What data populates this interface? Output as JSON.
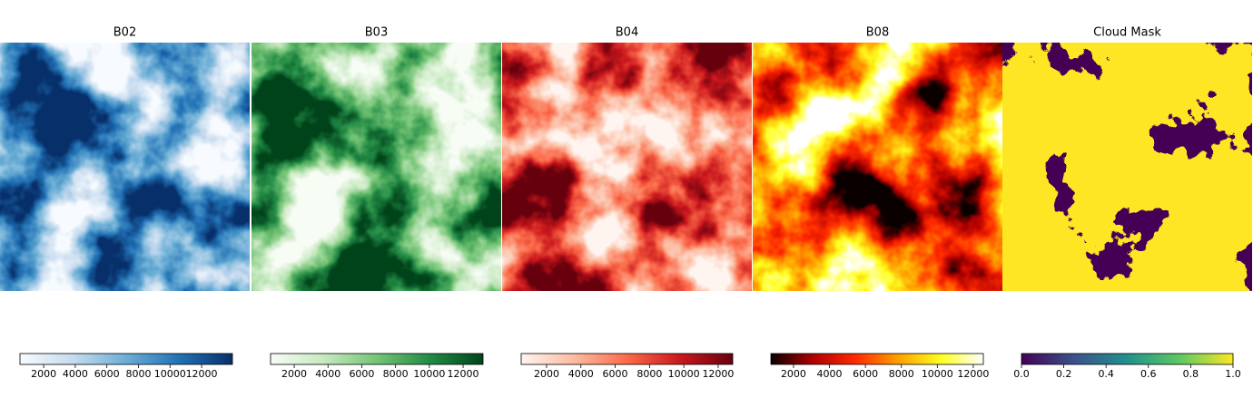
{
  "chart_data": [
    {
      "type": "image",
      "title": "B02",
      "colormap": [
        "#f7fbff",
        "#c6dbef",
        "#6baed6",
        "#2171b5",
        "#08306b"
      ],
      "xlim": [
        500,
        13950
      ],
      "xticks": [
        2000,
        4000,
        6000,
        8000,
        10000,
        12000
      ]
    },
    {
      "type": "image",
      "title": "B03",
      "colormap": [
        "#f7fcf5",
        "#c7e9c0",
        "#74c476",
        "#238b45",
        "#00441b"
      ],
      "xlim": [
        600,
        13180
      ],
      "xticks": [
        2000,
        4000,
        6000,
        8000,
        10000,
        12000
      ]
    },
    {
      "type": "image",
      "title": "B04",
      "colormap": [
        "#fff5f0",
        "#fcbba1",
        "#fb6a4a",
        "#cb181d",
        "#67000d"
      ],
      "xlim": [
        520,
        12850
      ],
      "xticks": [
        2000,
        4000,
        6000,
        8000,
        10000,
        12000
      ]
    },
    {
      "type": "image",
      "title": "B08",
      "colormap": [
        "#0b0000",
        "#b00000",
        "#ff2a00",
        "#ffa000",
        "#ffff20",
        "#ffffff"
      ],
      "xlim": [
        740,
        12560
      ],
      "xticks": [
        2000,
        4000,
        6000,
        8000,
        10000,
        12000
      ]
    },
    {
      "type": "mask",
      "title": "Cloud Mask",
      "colormap": [
        "#440154",
        "#3b528b",
        "#21918c",
        "#5ec962",
        "#fde725"
      ],
      "xlim": [
        0,
        1
      ],
      "xticks": [
        {
          "value": 0,
          "label": "0.0"
        },
        0.2,
        0.4,
        0.6,
        0.8,
        {
          "value": 1,
          "label": "1.0"
        }
      ]
    }
  ]
}
